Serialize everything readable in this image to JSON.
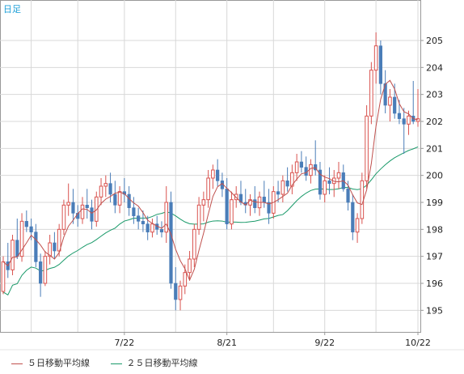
{
  "period_label": "日足",
  "colors": {
    "up": "#d9534f",
    "down": "#4a7db8",
    "ma5": "#c0504d",
    "ma25": "#1a9a6a",
    "grid": "#d8d8d8",
    "axis": "#999999",
    "period_label": "#1fa0d8"
  },
  "legend": [
    {
      "label": "５日移動平均線",
      "color": "#c0504d"
    },
    {
      "label": "２５日移動平均線",
      "color": "#1a9a6a"
    }
  ],
  "chart_data": {
    "type": "candlestick",
    "ylim": [
      194.2,
      206.5
    ],
    "yticks": [
      195,
      196,
      197,
      198,
      199,
      200,
      201,
      202,
      203,
      204,
      205
    ],
    "xticks": [
      {
        "index": 26,
        "label": "7/22"
      },
      {
        "index": 48,
        "label": "8/21"
      },
      {
        "index": 69,
        "label": "9/22"
      },
      {
        "index": 89,
        "label": "10/22"
      }
    ],
    "n_sessions": 90,
    "candles": [
      [
        195.7,
        197.0,
        195.6,
        196.8
      ],
      [
        196.8,
        197.5,
        196.2,
        196.5
      ],
      [
        196.5,
        197.8,
        196.3,
        197.6
      ],
      [
        197.6,
        198.4,
        196.9,
        197.0
      ],
      [
        197.0,
        198.6,
        196.8,
        198.3
      ],
      [
        198.3,
        198.7,
        197.9,
        198.1
      ],
      [
        198.1,
        198.4,
        197.6,
        197.9
      ],
      [
        197.9,
        198.2,
        196.6,
        196.8
      ],
      [
        196.8,
        197.1,
        195.5,
        196.0
      ],
      [
        196.0,
        197.2,
        195.9,
        197.0
      ],
      [
        197.0,
        197.8,
        196.7,
        197.5
      ],
      [
        197.5,
        197.9,
        196.9,
        197.2
      ],
      [
        197.2,
        198.2,
        197.0,
        198.0
      ],
      [
        198.0,
        199.1,
        197.8,
        198.9
      ],
      [
        198.9,
        199.7,
        198.5,
        199.0
      ],
      [
        199.0,
        199.5,
        198.2,
        198.6
      ],
      [
        198.6,
        198.9,
        198.1,
        198.4
      ],
      [
        198.4,
        199.2,
        198.2,
        198.9
      ],
      [
        198.9,
        199.5,
        198.4,
        198.8
      ],
      [
        198.8,
        199.1,
        198.0,
        198.3
      ],
      [
        198.3,
        199.4,
        198.1,
        199.2
      ],
      [
        199.2,
        199.9,
        198.9,
        199.6
      ],
      [
        199.6,
        200.0,
        199.2,
        199.7
      ],
      [
        199.7,
        200.1,
        199.0,
        199.3
      ],
      [
        199.3,
        199.8,
        198.6,
        198.9
      ],
      [
        198.9,
        199.6,
        198.6,
        199.4
      ],
      [
        199.4,
        199.9,
        199.0,
        199.3
      ],
      [
        199.3,
        199.6,
        198.5,
        198.8
      ],
      [
        198.8,
        199.2,
        198.2,
        198.5
      ],
      [
        198.5,
        198.8,
        198.0,
        198.3
      ],
      [
        198.3,
        198.7,
        197.9,
        198.2
      ],
      [
        198.2,
        198.5,
        197.6,
        197.9
      ],
      [
        197.9,
        198.4,
        197.7,
        198.2
      ],
      [
        198.2,
        198.5,
        197.8,
        198.0
      ],
      [
        198.0,
        198.3,
        197.7,
        197.9
      ],
      [
        197.9,
        199.6,
        197.5,
        199.0
      ],
      [
        199.0,
        199.4,
        195.8,
        196.0
      ],
      [
        196.0,
        196.6,
        195.0,
        195.4
      ],
      [
        195.4,
        196.1,
        195.0,
        195.9
      ],
      [
        195.9,
        196.7,
        195.6,
        196.4
      ],
      [
        196.4,
        197.2,
        196.1,
        196.9
      ],
      [
        196.9,
        198.2,
        196.6,
        198.0
      ],
      [
        198.0,
        199.2,
        197.8,
        198.9
      ],
      [
        198.9,
        199.4,
        198.3,
        199.1
      ],
      [
        199.1,
        200.2,
        198.8,
        199.9
      ],
      [
        199.9,
        200.4,
        199.5,
        200.2
      ],
      [
        200.2,
        200.6,
        199.6,
        199.8
      ],
      [
        199.8,
        200.1,
        199.2,
        199.5
      ],
      [
        199.5,
        199.9,
        198.0,
        198.2
      ],
      [
        198.2,
        199.4,
        198.0,
        199.1
      ],
      [
        199.1,
        199.6,
        198.8,
        199.3
      ],
      [
        199.3,
        199.8,
        198.9,
        199.0
      ],
      [
        199.0,
        199.5,
        198.6,
        198.9
      ],
      [
        198.9,
        199.3,
        198.5,
        199.1
      ],
      [
        199.1,
        199.6,
        198.6,
        198.8
      ],
      [
        198.8,
        199.4,
        198.5,
        199.2
      ],
      [
        199.2,
        199.8,
        198.8,
        199.0
      ],
      [
        199.0,
        199.5,
        198.2,
        198.6
      ],
      [
        198.6,
        199.6,
        198.4,
        199.4
      ],
      [
        199.4,
        199.8,
        199.0,
        199.3
      ],
      [
        199.3,
        200.0,
        199.0,
        199.8
      ],
      [
        199.8,
        200.3,
        199.4,
        199.6
      ],
      [
        199.6,
        200.4,
        199.3,
        200.1
      ],
      [
        200.1,
        200.8,
        199.8,
        200.5
      ],
      [
        200.5,
        200.9,
        200.1,
        200.3
      ],
      [
        200.3,
        200.7,
        199.8,
        200.0
      ],
      [
        200.0,
        200.6,
        199.7,
        200.4
      ],
      [
        200.4,
        201.3,
        200.0,
        200.2
      ],
      [
        200.2,
        200.5,
        199.1,
        199.3
      ],
      [
        199.3,
        200.0,
        199.0,
        199.8
      ],
      [
        199.8,
        200.3,
        199.3,
        199.7
      ],
      [
        199.7,
        200.2,
        199.2,
        199.9
      ],
      [
        199.9,
        200.5,
        199.5,
        200.1
      ],
      [
        200.1,
        200.4,
        199.4,
        199.5
      ],
      [
        199.5,
        199.8,
        198.7,
        199.0
      ],
      [
        199.0,
        199.3,
        197.6,
        197.9
      ],
      [
        197.9,
        198.6,
        197.5,
        198.4
      ],
      [
        198.4,
        200.1,
        198.2,
        199.8
      ],
      [
        199.8,
        202.6,
        199.5,
        202.2
      ],
      [
        202.2,
        204.2,
        201.9,
        203.9
      ],
      [
        203.9,
        205.3,
        203.4,
        204.8
      ],
      [
        204.8,
        205.0,
        203.0,
        203.4
      ],
      [
        203.4,
        203.9,
        202.3,
        202.6
      ],
      [
        202.6,
        203.2,
        202.0,
        202.9
      ],
      [
        202.9,
        203.4,
        202.1,
        202.3
      ],
      [
        202.3,
        202.8,
        201.9,
        202.1
      ],
      [
        202.1,
        202.5,
        200.8,
        201.9
      ],
      [
        201.9,
        202.4,
        201.5,
        202.2
      ],
      [
        202.2,
        203.5,
        201.9,
        202.0
      ],
      [
        202.0,
        203.2,
        201.8,
        202.1
      ]
    ]
  }
}
